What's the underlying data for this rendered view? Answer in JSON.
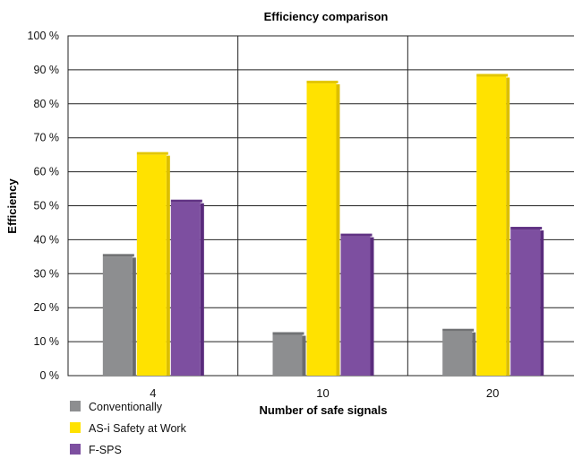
{
  "chart_data": {
    "type": "bar",
    "title": "Efficiency comparison",
    "xlabel": "Number of safe signals",
    "ylabel": "Efficiency",
    "categories": [
      "4",
      "10",
      "20"
    ],
    "series": [
      {
        "name": "Conventionally",
        "color": "#8d8e90",
        "values": [
          35,
          12,
          13
        ]
      },
      {
        "name": "AS-i Safety at Work",
        "color": "#ffe200",
        "values": [
          65,
          86,
          88
        ]
      },
      {
        "name": "F-SPS",
        "color": "#7d4fa0",
        "values": [
          51,
          41,
          43
        ]
      }
    ],
    "ylim": [
      0,
      100
    ],
    "yticks": [
      "0 %",
      "10 %",
      "20 %",
      "30 %",
      "40 %",
      "50 %",
      "60 %",
      "70 %",
      "80 %",
      "90 %",
      "100 %"
    ],
    "grid": true,
    "legend_position": "bottom-left"
  }
}
